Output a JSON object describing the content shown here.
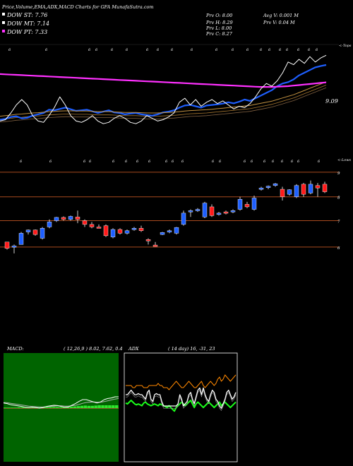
{
  "header": {
    "title": "Price,Volume,EMA,ADX,MACD Charts for GFA MunafaSutra.com",
    "dow_st": "DOW ST: 7.76",
    "dow_mt": "DOW MT: 7.14",
    "dow_pt": "DOW PT: 7.33",
    "prev_open": "Prv  O: 8.00",
    "prev_high": "Prv  H: 8.29",
    "prev_low": "Prv  L: 8.00",
    "prev_close": "Prv  C: 8.27",
    "avg_volume": "Avg V: 0.001 M",
    "prev_volume": "Prv  V: 0.04  M"
  },
  "colors": {
    "dow_st": "#ffffff",
    "dow_mt": "#ffffff",
    "dow_pt": "#ff33ff",
    "ema_fast": "#1e5fff",
    "ema_slow": "#ff30ff",
    "price_line": "#ffffff",
    "up_candle": "#1e5fff",
    "down_candle": "#ff1a1a",
    "level_line": "#a84a1e",
    "macd_bg": "#006400",
    "macd_hist": "#2ee82e",
    "adx_line": "#ffffff",
    "adx_plus": "#1aff1a",
    "adx_minus": "#ff8800"
  },
  "ema_panel": {
    "corner_label": "<-Tops",
    "price_label": "9.09",
    "tick_glyph": "6"
  },
  "candle_panel": {
    "corner_label": "<-Lows",
    "tick_glyph": "6",
    "levels": [
      "9",
      "8",
      "7",
      "6"
    ]
  },
  "macd": {
    "title": "MACD:",
    "params": "( 12,26,9 ) 8.02,  7.62,  0.4"
  },
  "adx": {
    "title": "ADX",
    "params": "( 14  day) 16,  -31,  23"
  },
  "chart_data": [
    {
      "type": "line",
      "panel": "EMA",
      "series": [
        {
          "values": [
            7.05,
            7.08,
            7.15,
            7.18,
            7.1,
            7.12,
            7.2,
            7.25,
            7.3,
            7.42,
            7.4,
            7.45,
            7.5,
            7.44,
            7.38,
            7.4,
            7.42,
            7.36,
            7.3,
            7.35,
            7.4,
            7.32,
            7.3,
            7.25,
            7.28,
            7.3,
            7.25,
            7.22,
            7.2,
            7.25,
            7.32,
            7.35,
            7.4,
            7.5,
            7.58,
            7.6,
            7.55,
            7.5,
            7.58,
            7.6,
            7.62,
            7.65,
            7.7,
            7.66,
            7.72,
            7.8,
            7.75,
            7.85,
            7.95,
            8.05,
            8.15,
            8.3,
            8.4,
            8.45,
            8.55,
            8.7,
            8.8,
            8.9,
            9.0,
            9.05,
            9.09
          ]
        },
        {
          "values": [
            7.18,
            7.2,
            7.22,
            7.25,
            7.26,
            7.28,
            7.3,
            7.31,
            7.33,
            7.35,
            7.36,
            7.37,
            7.38,
            7.38,
            7.37,
            7.37,
            7.37,
            7.36,
            7.35,
            7.35,
            7.35,
            7.34,
            7.33,
            7.32,
            7.32,
            7.32,
            7.31,
            7.3,
            7.3,
            7.3,
            7.31,
            7.32,
            7.33,
            7.35,
            7.37,
            7.39,
            7.4,
            7.41,
            7.42,
            7.44,
            7.46,
            7.48,
            7.5,
            7.52,
            7.54,
            7.56,
            7.58,
            7.62,
            7.66,
            7.7,
            7.74,
            7.8,
            7.86,
            7.92,
            7.98,
            8.06,
            8.14,
            8.22,
            8.3,
            8.38,
            8.46
          ]
        },
        {
          "values": [
            8.75,
            8.74,
            8.73,
            8.72,
            8.71,
            8.7,
            8.69,
            8.68,
            8.67,
            8.66,
            8.65,
            8.64,
            8.63,
            8.62,
            8.61,
            8.6,
            8.59,
            8.58,
            8.57,
            8.56,
            8.55,
            8.54,
            8.53,
            8.52,
            8.51,
            8.5,
            8.49,
            8.48,
            8.47,
            8.46,
            8.45,
            8.44,
            8.43,
            8.42,
            8.41,
            8.4,
            8.39,
            8.38,
            8.37,
            8.36,
            8.35,
            8.34,
            8.33,
            8.32,
            8.31,
            8.3,
            8.29,
            8.28,
            8.27,
            8.27,
            8.27,
            8.28,
            8.29,
            8.3,
            8.32,
            8.34,
            8.36,
            8.38,
            8.4,
            8.42,
            8.44
          ]
        },
        {
          "values": [
            7.0,
            7.05,
            7.3,
            7.6,
            7.8,
            7.6,
            7.2,
            7.0,
            6.95,
            7.2,
            7.5,
            7.9,
            7.6,
            7.2,
            7.0,
            6.95,
            7.05,
            7.2,
            7.0,
            6.9,
            6.95,
            7.1,
            7.2,
            7.1,
            6.95,
            6.9,
            7.0,
            7.2,
            7.1,
            7.0,
            7.05,
            7.15,
            7.3,
            7.7,
            7.85,
            7.6,
            7.8,
            7.55,
            7.7,
            7.8,
            7.65,
            7.75,
            7.6,
            7.45,
            7.55,
            7.5,
            7.65,
            7.9,
            8.2,
            8.4,
            8.3,
            8.5,
            8.8,
            9.2,
            9.1,
            9.3,
            9.15,
            9.4,
            9.2,
            9.35,
            9.45
          ]
        }
      ]
    },
    {
      "type": "candlestick",
      "panel": "Price",
      "ylim": [
        5.8,
        9.2
      ],
      "levels": [
        8.98,
        8.0,
        7.05,
        6.0
      ],
      "candles": [
        {
          "o": 6.2,
          "h": 6.2,
          "l": 5.9,
          "c": 5.95
        },
        {
          "o": 6.0,
          "h": 6.1,
          "l": 5.75,
          "c": 6.05
        },
        {
          "o": 6.1,
          "h": 6.6,
          "l": 6.1,
          "c": 6.55
        },
        {
          "o": 6.6,
          "h": 6.7,
          "l": 6.5,
          "c": 6.68
        },
        {
          "o": 6.68,
          "h": 6.7,
          "l": 6.45,
          "c": 6.5
        },
        {
          "o": 6.35,
          "h": 6.8,
          "l": 6.3,
          "c": 6.75
        },
        {
          "o": 6.8,
          "h": 7.1,
          "l": 6.75,
          "c": 7.0
        },
        {
          "o": 7.05,
          "h": 7.2,
          "l": 7.0,
          "c": 7.18
        },
        {
          "o": 7.18,
          "h": 7.22,
          "l": 7.05,
          "c": 7.1
        },
        {
          "o": 7.1,
          "h": 7.25,
          "l": 7.05,
          "c": 7.22
        },
        {
          "o": 7.2,
          "h": 7.45,
          "l": 6.95,
          "c": 7.1
        },
        {
          "o": 7.05,
          "h": 7.1,
          "l": 6.8,
          "c": 6.9
        },
        {
          "o": 6.9,
          "h": 7.0,
          "l": 6.75,
          "c": 6.8
        },
        {
          "o": 6.8,
          "h": 6.9,
          "l": 6.75,
          "c": 6.78
        },
        {
          "o": 6.85,
          "h": 6.9,
          "l": 6.4,
          "c": 6.45
        },
        {
          "o": 6.4,
          "h": 6.75,
          "l": 6.35,
          "c": 6.7
        },
        {
          "o": 6.7,
          "h": 6.75,
          "l": 6.5,
          "c": 6.55
        },
        {
          "o": 6.55,
          "h": 6.7,
          "l": 6.5,
          "c": 6.65
        },
        {
          "o": 6.7,
          "h": 6.8,
          "l": 6.65,
          "c": 6.75
        },
        {
          "o": 6.75,
          "h": 6.85,
          "l": 6.6,
          "c": 6.65
        },
        {
          "o": 6.3,
          "h": 6.35,
          "l": 6.1,
          "c": 6.28
        },
        {
          "o": 6.08,
          "h": 6.2,
          "l": 6.02,
          "c": 6.05
        },
        {
          "o": 6.5,
          "h": 6.6,
          "l": 6.48,
          "c": 6.58
        },
        {
          "o": 6.6,
          "h": 6.7,
          "l": 6.55,
          "c": 6.65
        },
        {
          "o": 6.55,
          "h": 6.8,
          "l": 6.5,
          "c": 6.78
        },
        {
          "o": 6.9,
          "h": 7.45,
          "l": 6.85,
          "c": 7.35
        },
        {
          "o": 7.4,
          "h": 7.5,
          "l": 7.2,
          "c": 7.45
        },
        {
          "o": 7.45,
          "h": 7.55,
          "l": 7.4,
          "c": 7.5
        },
        {
          "o": 7.2,
          "h": 7.8,
          "l": 7.15,
          "c": 7.75
        },
        {
          "o": 7.6,
          "h": 7.7,
          "l": 7.2,
          "c": 7.25
        },
        {
          "o": 7.3,
          "h": 7.4,
          "l": 7.25,
          "c": 7.35
        },
        {
          "o": 7.4,
          "h": 7.45,
          "l": 7.3,
          "c": 7.38
        },
        {
          "o": 7.4,
          "h": 7.5,
          "l": 7.35,
          "c": 7.45
        },
        {
          "o": 7.5,
          "h": 8.0,
          "l": 7.45,
          "c": 7.9
        },
        {
          "o": 7.7,
          "h": 7.8,
          "l": 7.55,
          "c": 7.6
        },
        {
          "o": 7.5,
          "h": 8.05,
          "l": 7.45,
          "c": 7.95
        },
        {
          "o": 8.3,
          "h": 8.4,
          "l": 8.25,
          "c": 8.35
        },
        {
          "o": 8.4,
          "h": 8.45,
          "l": 8.3,
          "c": 8.42
        },
        {
          "o": 8.45,
          "h": 8.55,
          "l": 8.4,
          "c": 8.52
        },
        {
          "o": 8.3,
          "h": 8.4,
          "l": 7.85,
          "c": 8.0
        },
        {
          "o": 8.1,
          "h": 8.3,
          "l": 8.05,
          "c": 8.28
        },
        {
          "o": 8.0,
          "h": 8.5,
          "l": 7.95,
          "c": 8.45
        },
        {
          "o": 8.5,
          "h": 8.55,
          "l": 8.0,
          "c": 8.1
        },
        {
          "o": 8.15,
          "h": 8.65,
          "l": 8.1,
          "c": 8.5
        },
        {
          "o": 8.45,
          "h": 8.55,
          "l": 8.0,
          "c": 8.35
        },
        {
          "o": 8.5,
          "h": 8.6,
          "l": 8.15,
          "c": 8.2
        }
      ]
    },
    {
      "type": "line",
      "panel": "MACD",
      "series": [
        {
          "values": [
            0.18,
            0.16,
            0.12,
            0.1,
            0.08,
            0.06,
            0.03,
            0.02,
            0.03,
            0.02,
            0.0,
            0.02,
            0.06,
            0.08,
            0.1,
            0.09,
            0.06,
            0.03,
            0.04,
            0.1,
            0.16,
            0.24,
            0.3,
            0.3,
            0.26,
            0.22,
            0.18,
            0.22,
            0.3,
            0.34,
            0.36,
            0.4,
            0.4
          ]
        },
        {
          "values": [
            0.2,
            0.19,
            0.17,
            0.15,
            0.13,
            0.11,
            0.09,
            0.07,
            0.06,
            0.05,
            0.04,
            0.04,
            0.05,
            0.06,
            0.07,
            0.08,
            0.08,
            0.07,
            0.07,
            0.08,
            0.1,
            0.13,
            0.17,
            0.2,
            0.21,
            0.22,
            0.21,
            0.21,
            0.23,
            0.26,
            0.29,
            0.32,
            0.34
          ]
        }
      ],
      "histogram": [
        0.02,
        0.02,
        0.02,
        0.02,
        0.03,
        0.03,
        0.03,
        0.03,
        0.03,
        0.03,
        0.03,
        0.03,
        0.04,
        0.04,
        0.04,
        0.04,
        0.03,
        0.03,
        0.03,
        0.05,
        0.06,
        0.07,
        0.08,
        0.09,
        0.08,
        0.08,
        0.09,
        0.1,
        0.1,
        0.1,
        0.1,
        0.1,
        0.1
      ],
      "ylim": [
        -0.6,
        1.2
      ]
    },
    {
      "type": "line",
      "panel": "ADX",
      "series": [
        {
          "values": [
            40,
            40,
            42,
            44,
            42,
            40,
            40,
            41,
            40,
            40,
            38,
            36,
            42,
            44,
            36,
            34,
            40,
            41,
            40,
            40,
            34,
            30,
            30,
            30,
            30,
            30,
            30,
            30,
            30,
            32,
            40,
            36,
            30,
            32,
            34,
            40,
            42,
            36,
            32,
            38,
            44,
            46,
            40,
            46,
            40,
            36,
            34,
            40,
            44,
            42,
            36,
            34,
            30,
            28,
            32,
            36,
            42,
            44,
            40,
            36,
            38,
            42
          ]
        },
        {
          "values": [
            65,
            64,
            66,
            68,
            66,
            64,
            63,
            64,
            63,
            62,
            65,
            66,
            64,
            63,
            62,
            63,
            64,
            63,
            62,
            64,
            63,
            62,
            61,
            60,
            62,
            60,
            58,
            56,
            60,
            62,
            64,
            66,
            64,
            62,
            64,
            66,
            68,
            64,
            60,
            64,
            66,
            64,
            62,
            60,
            62,
            64,
            66,
            64,
            62,
            60,
            62,
            64,
            66,
            62,
            64,
            66,
            64,
            62,
            60,
            62,
            64,
            66
          ]
        },
        {
          "values": [
            72,
            72,
            72,
            72,
            70,
            70,
            72,
            72,
            72,
            72,
            70,
            70,
            70,
            72,
            72,
            72,
            72,
            72,
            74,
            72,
            72,
            70,
            70,
            70,
            68,
            70,
            72,
            74,
            76,
            74,
            72,
            70,
            70,
            72,
            74,
            76,
            74,
            72,
            70,
            70,
            72,
            74,
            76,
            72,
            70,
            72,
            74,
            76,
            74,
            72,
            74,
            78,
            80,
            76,
            78,
            82,
            80,
            78,
            76,
            78,
            80,
            82
          ]
        }
      ],
      "ylim": [
        0,
        100
      ]
    }
  ]
}
